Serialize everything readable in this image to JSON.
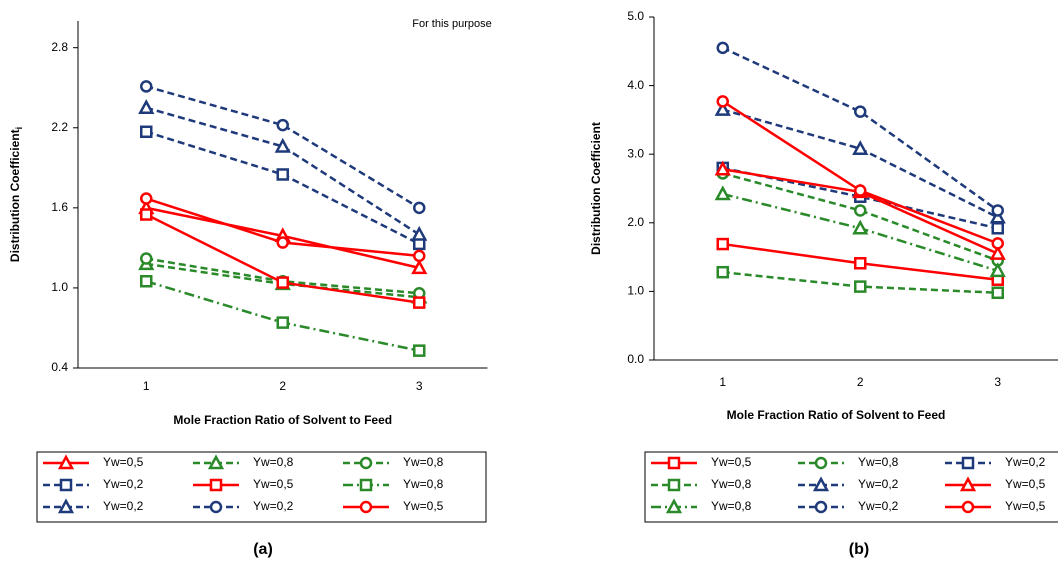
{
  "chart_data": [
    {
      "type": "line",
      "title": "(a)",
      "annotation": "For this purpose",
      "x_label": "Mole Fraction Ratio of Solvent to Feed",
      "y_label": "Distribution Coefficient",
      "y_label_subscript": "i",
      "categories": [
        "1",
        "2",
        "3"
      ],
      "ylim": [
        0.4,
        3.0
      ],
      "yticks": [
        0.4,
        {
          "value": 1,
          "label": "1.0"
        },
        1.6,
        2.2,
        2.8
      ],
      "grid": false,
      "legend": "bottom",
      "series": [
        {
          "name": "Yw=0,5",
          "color": "#ff0000",
          "line": "solid",
          "marker": "triangle",
          "values": [
            1.6,
            1.39,
            1.15
          ]
        },
        {
          "name": "Yw=0,8",
          "color": "#2a8a2a",
          "line": "dash",
          "marker": "triangle",
          "values": [
            1.18,
            1.03,
            0.93
          ]
        },
        {
          "name": "Yw=0,8",
          "color": "#2a8a2a",
          "line": "dash",
          "marker": "circle",
          "values": [
            1.22,
            1.05,
            0.96
          ]
        },
        {
          "name": "Yw=0,2",
          "color": "#1f3a7a",
          "line": "dash",
          "marker": "square",
          "values": [
            2.17,
            1.85,
            1.33
          ]
        },
        {
          "name": "Yw=0,5",
          "color": "#ff0000",
          "line": "solid",
          "marker": "square",
          "values": [
            1.55,
            1.04,
            0.89
          ]
        },
        {
          "name": "Yw=0,8",
          "color": "#2a8a2a",
          "line": "dashdot",
          "marker": "square",
          "values": [
            1.05,
            0.74,
            0.53
          ]
        },
        {
          "name": "Yw=0,2",
          "color": "#1f3a7a",
          "line": "dash",
          "marker": "triangle",
          "values": [
            2.35,
            2.06,
            1.4
          ]
        },
        {
          "name": "Yw=0,2",
          "color": "#1f3a7a",
          "line": "dash",
          "marker": "circle",
          "values": [
            2.51,
            2.22,
            1.6
          ]
        },
        {
          "name": "Yw=0,5",
          "color": "#ff0000",
          "line": "solid",
          "marker": "circle",
          "values": [
            1.67,
            1.34,
            1.24
          ]
        }
      ]
    },
    {
      "type": "line",
      "title": "(b)",
      "x_label": "Mole Fraction Ratio of Solvent to Feed",
      "y_label": "Distribution Coefficient",
      "categories": [
        "1",
        "2",
        "3"
      ],
      "ylim": [
        0,
        5
      ],
      "yticks": [
        {
          "value": 0,
          "label": "0.0"
        },
        {
          "value": 1,
          "label": "1.0"
        },
        {
          "value": 2,
          "label": "2.0"
        },
        {
          "value": 3,
          "label": "3.0"
        },
        {
          "value": 4,
          "label": "4.0"
        },
        {
          "value": 5,
          "label": "5.0"
        }
      ],
      "grid": false,
      "legend": "bottom",
      "series": [
        {
          "name": "Yw=0,5",
          "color": "#ff0000",
          "line": "solid",
          "marker": "square",
          "values": [
            1.69,
            1.41,
            1.17
          ]
        },
        {
          "name": "Yw=0,8",
          "color": "#2a8a2a",
          "line": "dash",
          "marker": "circle",
          "values": [
            2.72,
            2.18,
            1.45
          ]
        },
        {
          "name": "Yw=0,2",
          "color": "#1f3a7a",
          "line": "dash",
          "marker": "square",
          "values": [
            2.8,
            2.38,
            1.92
          ]
        },
        {
          "name": "Yw=0,8",
          "color": "#2a8a2a",
          "line": "dash",
          "marker": "square",
          "values": [
            1.28,
            1.07,
            0.98
          ]
        },
        {
          "name": "Yw=0,2",
          "color": "#1f3a7a",
          "line": "dash",
          "marker": "triangle",
          "values": [
            3.65,
            3.08,
            2.08
          ]
        },
        {
          "name": "Yw=0,5",
          "color": "#ff0000",
          "line": "solid",
          "marker": "triangle",
          "values": [
            2.78,
            2.45,
            1.55
          ]
        },
        {
          "name": "Yw=0,8",
          "color": "#2a8a2a",
          "line": "dashdot",
          "marker": "triangle",
          "values": [
            2.42,
            1.92,
            1.3
          ]
        },
        {
          "name": "Yw=0,2",
          "color": "#1f3a7a",
          "line": "dash",
          "marker": "circle",
          "values": [
            4.55,
            3.62,
            2.18
          ]
        },
        {
          "name": "Yw=0,5",
          "color": "#ff0000",
          "line": "solid",
          "marker": "circle",
          "values": [
            3.77,
            2.47,
            1.7
          ]
        }
      ]
    }
  ]
}
